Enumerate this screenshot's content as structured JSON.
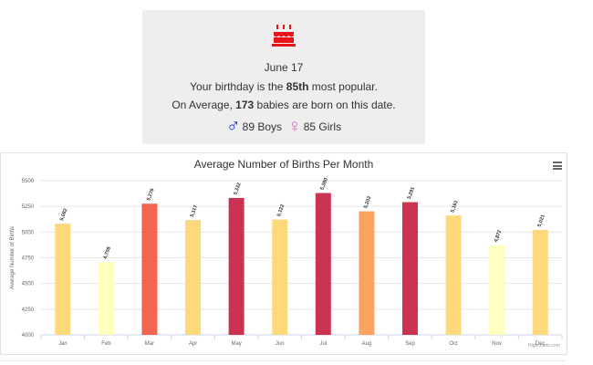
{
  "info": {
    "date": "June 17",
    "rank_prefix": "Your birthday is the ",
    "rank": "85th",
    "rank_suffix": " most popular.",
    "avg_prefix": "On Average, ",
    "avg_value": "173",
    "avg_suffix": " babies are born on this date.",
    "male_symbol": "♂",
    "boys": "89 Boys",
    "female_symbol": "♀",
    "girls": "85 Girls",
    "cake_icon": "birthday-cake-icon",
    "colors": {
      "cake": "#e8141b",
      "male": "#1a2ee6",
      "female": "#e36fbf",
      "card_bg": "#eeeeee"
    }
  },
  "chart_data": {
    "type": "bar",
    "title": "Average Number of Births Per Month",
    "ylabel": "Average Number of Births",
    "xlabel": "",
    "categories": [
      "Jan",
      "Feb",
      "Mar",
      "Apr",
      "May",
      "Jun",
      "Jul",
      "Aug",
      "Sep",
      "Oct",
      "Nov",
      "Dec"
    ],
    "values": [
      5082,
      4708,
      5276,
      5117,
      5332,
      5122,
      5380,
      5202,
      5291,
      5161,
      4872,
      5021
    ],
    "labels": [
      "5,082",
      "4,708",
      "5,276",
      "5,117",
      "5,332",
      "5,122",
      "5,380",
      "5,202",
      "5,291",
      "5,161",
      "4,872",
      "5,021"
    ],
    "colors": [
      "#fed97c",
      "#ffffc0",
      "#f3654e",
      "#fed97c",
      "#cc3352",
      "#fed97c",
      "#cc3352",
      "#fca45f",
      "#cc3352",
      "#fed97c",
      "#ffffc0",
      "#fed97c"
    ],
    "ylim": [
      4000,
      5500
    ],
    "yticks": [
      "4000",
      "4250",
      "4500",
      "4750",
      "5000",
      "5250",
      "5500"
    ],
    "grid": true,
    "legend": "none",
    "credit": "Highcharts.com",
    "menu_icon": "hamburger-menu-icon"
  }
}
